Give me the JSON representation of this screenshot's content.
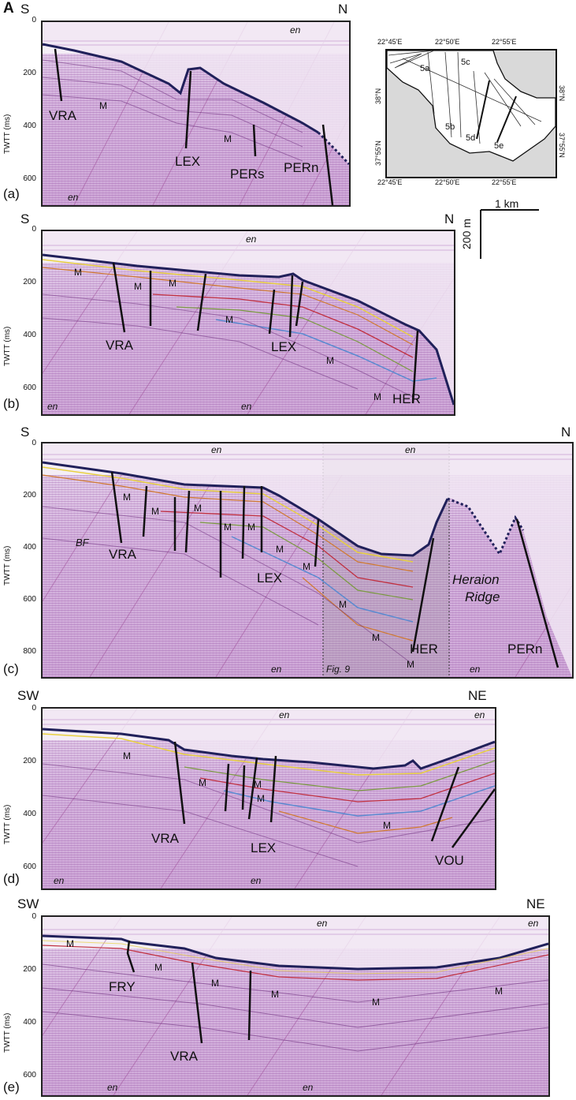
{
  "figure_letter": "A",
  "y_axis_label": "TWTT (ms)",
  "panels": [
    {
      "id": "a",
      "label": "(a)",
      "left": "S",
      "right": "N",
      "ticks": [
        "0",
        "200",
        "400",
        "600"
      ],
      "faults": [
        "VRA",
        "LEX",
        "PERs",
        "PERn"
      ],
      "unit": "M",
      "multiple": "en"
    },
    {
      "id": "b",
      "label": "(b)",
      "left": "S",
      "right": "N",
      "ticks": [
        "0",
        "200",
        "400",
        "600"
      ],
      "faults": [
        "VRA",
        "LEX",
        "HER"
      ],
      "unit": "M",
      "multiple": "en"
    },
    {
      "id": "c",
      "label": "(c)",
      "left": "S",
      "right": "N",
      "ticks": [
        "0",
        "200",
        "400",
        "600",
        "800"
      ],
      "faults": [
        "VRA",
        "LEX",
        "HER",
        "PERn"
      ],
      "unit": "M",
      "multiple": "en",
      "extra": {
        "bf": "BF",
        "ridge_1": "Heraion",
        "ridge_2": "Ridge",
        "fig_ref": "Fig. 9"
      }
    },
    {
      "id": "d",
      "label": "(d)",
      "left": "SW",
      "right": "NE",
      "ticks": [
        "0",
        "200",
        "400",
        "600"
      ],
      "faults": [
        "VRA",
        "LEX",
        "VOU"
      ],
      "unit": "M",
      "multiple": "en"
    },
    {
      "id": "e",
      "label": "(e)",
      "left": "SW",
      "right": "NE",
      "ticks": [
        "0",
        "200",
        "400",
        "600"
      ],
      "faults": [
        "FRY",
        "VRA"
      ],
      "unit": "M",
      "multiple": "en"
    }
  ],
  "scale": {
    "horizontal": "1 km",
    "vertical": "200 m"
  },
  "map": {
    "lon_ticks": [
      "22°45'E",
      "22°50'E",
      "22°55'E"
    ],
    "lat_ticks": [
      "38°N",
      "37°55'N"
    ],
    "line_labels": [
      "5a",
      "5b",
      "5c",
      "5d",
      "5e"
    ]
  }
}
